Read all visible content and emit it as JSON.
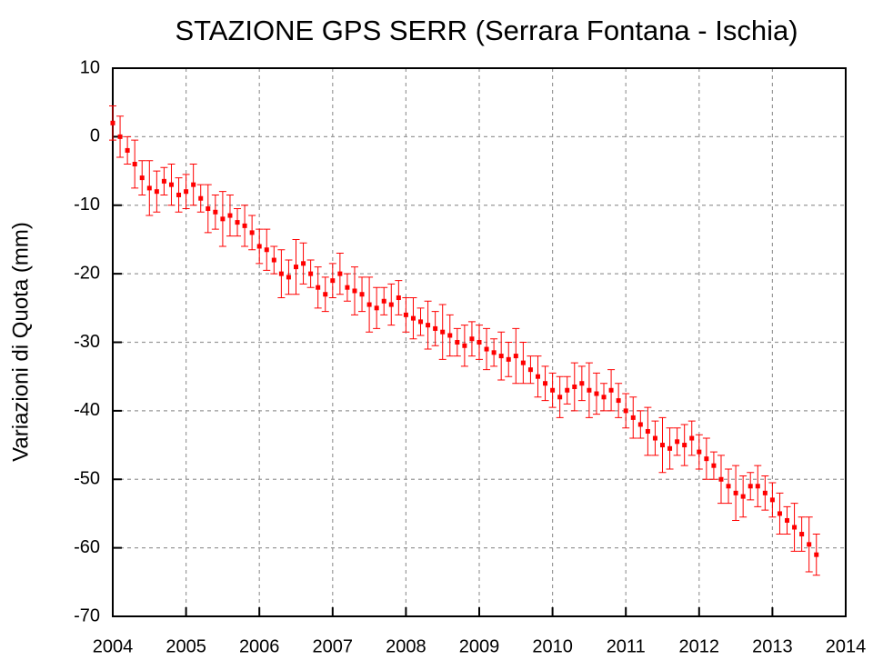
{
  "chart_data": {
    "type": "errorbar",
    "title": "STAZIONE GPS SERR (Serrara Fontana - Ischia)",
    "y_label": "Variazioni di Quota (mm)",
    "xlim": [
      2004,
      2014
    ],
    "xticks": [
      2004,
      2005,
      2006,
      2007,
      2008,
      2009,
      2010,
      2011,
      2012,
      2013,
      2014
    ],
    "ylim": [
      -70,
      10
    ],
    "yticks": [
      -70,
      -60,
      -50,
      -40,
      -30,
      -20,
      -10,
      0,
      10
    ],
    "grid": true,
    "x": [
      2004.0,
      2004.1,
      2004.2,
      2004.3,
      2004.4,
      2004.5,
      2004.6,
      2004.7,
      2004.8,
      2004.9,
      2005.0,
      2005.1,
      2005.2,
      2005.3,
      2005.4,
      2005.5,
      2005.6,
      2005.7,
      2005.8,
      2005.9,
      2006.0,
      2006.1,
      2006.2,
      2006.3,
      2006.4,
      2006.5,
      2006.6,
      2006.7,
      2006.8,
      2006.9,
      2007.0,
      2007.1,
      2007.2,
      2007.3,
      2007.4,
      2007.5,
      2007.6,
      2007.7,
      2007.8,
      2007.9,
      2008.0,
      2008.1,
      2008.2,
      2008.3,
      2008.4,
      2008.5,
      2008.6,
      2008.7,
      2008.8,
      2008.9,
      2009.0,
      2009.1,
      2009.2,
      2009.3,
      2009.4,
      2009.5,
      2009.6,
      2009.7,
      2009.8,
      2009.9,
      2010.0,
      2010.1,
      2010.2,
      2010.3,
      2010.4,
      2010.5,
      2010.6,
      2010.7,
      2010.8,
      2010.9,
      2011.0,
      2011.1,
      2011.2,
      2011.3,
      2011.4,
      2011.5,
      2011.6,
      2011.7,
      2011.8,
      2011.9,
      2012.0,
      2012.1,
      2012.2,
      2012.3,
      2012.4,
      2012.5,
      2012.6,
      2012.7,
      2012.8,
      2012.9,
      2013.0,
      2013.1,
      2013.2,
      2013.3,
      2013.4,
      2013.5,
      2013.6
    ],
    "series": [
      {
        "color": "#ff0000",
        "values": [
          2,
          0,
          -2,
          -4,
          -6,
          -7.5,
          -8,
          -6.5,
          -7,
          -8.5,
          -8,
          -7,
          -9,
          -10.5,
          -11,
          -12,
          -11.5,
          -12.5,
          -13,
          -14,
          -16,
          -16.5,
          -18,
          -20,
          -20.5,
          -19,
          -18.5,
          -20,
          -22,
          -23,
          -21,
          -20,
          -22,
          -22.5,
          -23,
          -24.5,
          -25,
          -24,
          -24.5,
          -23.5,
          -26,
          -26.5,
          -27,
          -27.5,
          -28,
          -28.5,
          -29,
          -30,
          -30.5,
          -29.5,
          -30,
          -31,
          -31.5,
          -32,
          -32.5,
          -32,
          -33,
          -34,
          -35,
          -36,
          -37,
          -38,
          -37,
          -36.5,
          -36,
          -37,
          -37.5,
          -38,
          -37,
          -38.5,
          -40,
          -41,
          -42,
          -43,
          -44,
          -45,
          -45.5,
          -44.5,
          -45,
          -44,
          -46,
          -47,
          -48,
          -50,
          -51,
          -52,
          -52.5,
          -51,
          -51,
          -52,
          -53,
          -55,
          -56,
          -57,
          -58,
          -59.5,
          -61
        ],
        "errors": [
          2.5,
          3,
          2,
          3.5,
          2.5,
          4,
          3,
          2,
          3,
          2.5,
          2.5,
          3,
          2,
          3.5,
          2.5,
          4,
          3,
          2,
          3,
          2.5,
          2.5,
          3,
          2,
          3.5,
          2.5,
          4,
          3,
          2,
          3,
          2.5,
          2.5,
          3,
          2,
          3.5,
          2.5,
          4,
          3,
          2,
          3,
          2.5,
          2.5,
          3,
          2,
          3.5,
          2.5,
          4,
          3,
          2,
          3,
          2.5,
          2.5,
          3,
          2,
          3.5,
          2.5,
          4,
          3,
          2,
          3,
          2.5,
          2.5,
          3,
          2,
          3.5,
          2.5,
          4,
          3,
          2,
          3,
          2.5,
          2.5,
          3,
          2,
          3.5,
          2.5,
          4,
          3,
          2,
          3,
          2.5,
          2.5,
          3,
          2,
          3.5,
          2.5,
          4,
          3,
          2,
          3,
          2.5,
          2.5,
          3,
          2,
          3.5,
          2.5,
          4,
          3
        ]
      }
    ]
  }
}
